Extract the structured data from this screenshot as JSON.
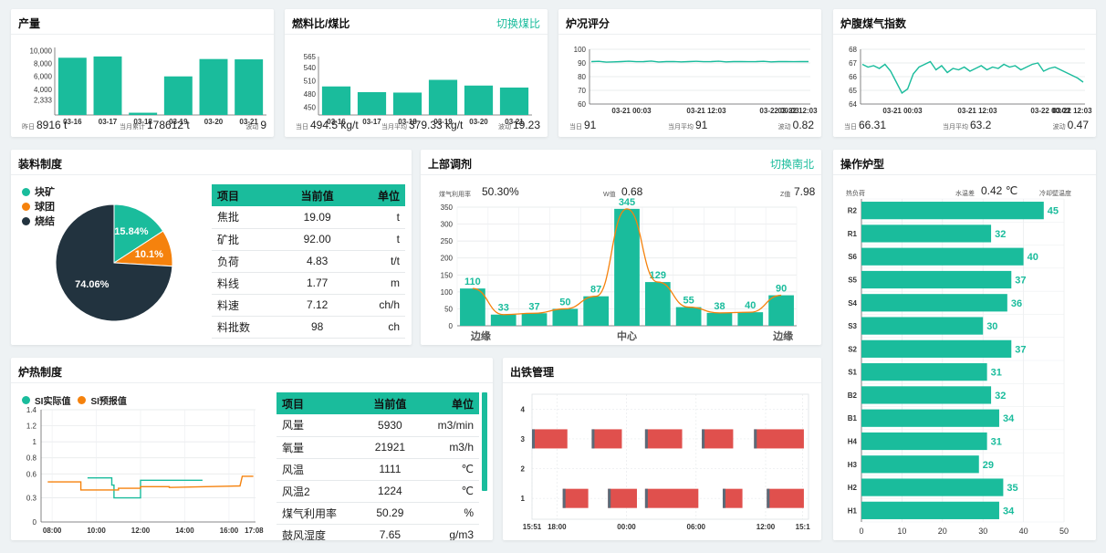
{
  "colors": {
    "accent": "#1abc9c",
    "orange": "#f5820d",
    "dark": "#22333f",
    "red": "#e0504d",
    "grey": "#5a6a78"
  },
  "production": {
    "title": "产量",
    "stats": [
      {
        "label": "昨日",
        "value": "8916 t"
      },
      {
        "label": "当月累计",
        "value": "178612 t"
      },
      {
        "label": "波动",
        "value": "9"
      }
    ]
  },
  "fuel": {
    "title": "燃料比/煤比",
    "action": "切换煤比",
    "stats": [
      {
        "label": "当日",
        "value": "494.5 kg/t"
      },
      {
        "label": "当月平均",
        "value": "379.33 kg/t"
      },
      {
        "label": "波动",
        "value": "19.23"
      }
    ]
  },
  "furnace_score": {
    "title": "炉况评分",
    "stats": [
      {
        "label": "当日",
        "value": "91"
      },
      {
        "label": "当月平均",
        "value": "91"
      },
      {
        "label": "波动",
        "value": "0.82"
      }
    ]
  },
  "bosh_gas": {
    "title": "炉腹煤气指数",
    "stats": [
      {
        "label": "当日",
        "value": "66.31"
      },
      {
        "label": "当月平均",
        "value": "63.2"
      },
      {
        "label": "波动",
        "value": "0.47"
      }
    ]
  },
  "charging": {
    "title": "装料制度",
    "legend": [
      "块矿",
      "球团",
      "烧结"
    ],
    "table": {
      "headers": [
        "项目",
        "当前值",
        "单位"
      ],
      "rows": [
        [
          "焦批",
          "19.09",
          "t"
        ],
        [
          "矿批",
          "92.00",
          "t"
        ],
        [
          "负荷",
          "4.83",
          "t/t"
        ],
        [
          "料线",
          "1.77",
          "m"
        ],
        [
          "料速",
          "7.12",
          "ch/h"
        ],
        [
          "料批数",
          "98",
          "ch"
        ]
      ]
    }
  },
  "upper": {
    "title": "上部调剂",
    "action": "切换南北",
    "gas_label": "煤气利用率",
    "gas_value": "50.30%",
    "w_label": "W值",
    "w_value": "0.68",
    "z_label": "Z值",
    "z_value": "7.98"
  },
  "operation": {
    "title": "操作炉型",
    "left_label": "热负荷",
    "water_label": "水温差",
    "water_value": "0.42 ℃",
    "right_label": "冷却壁温度"
  },
  "thermal": {
    "title": "炉热制度",
    "legend": [
      "SI实际值",
      "SI预报值"
    ],
    "table": {
      "headers": [
        "项目",
        "当前值",
        "单位"
      ],
      "rows": [
        [
          "风量",
          "5930",
          "m3/min"
        ],
        [
          "氧量",
          "21921",
          "m3/h"
        ],
        [
          "风温",
          "1111",
          "℃"
        ],
        [
          "风温2",
          "1224",
          "℃"
        ],
        [
          "煤气利用率",
          "50.29",
          "%"
        ],
        [
          "鼓风湿度",
          "7.65",
          "g/m3"
        ]
      ]
    }
  },
  "tapping": {
    "title": "出铁管理"
  },
  "chart_data": [
    {
      "id": "production",
      "type": "bar",
      "categories": [
        "03-16",
        "03-17",
        "03-18",
        "03-19",
        "03-20",
        "03-21"
      ],
      "values": [
        8900,
        9100,
        350,
        6000,
        8700,
        8650
      ],
      "yticks": [
        2333,
        4000,
        6000,
        8000,
        10000
      ],
      "ytick_labels": [
        "2,333",
        "4,000",
        "6,000",
        "8,000",
        "10,000"
      ],
      "ylim": [
        0,
        10500
      ]
    },
    {
      "id": "fuel",
      "type": "bar",
      "categories": [
        "03-16",
        "03-17",
        "03-18",
        "03-19",
        "03-20",
        "03-21"
      ],
      "values": [
        497,
        484,
        483,
        512,
        499,
        494.5
      ],
      "yticks": [
        450,
        480,
        510,
        540,
        565
      ],
      "ylim": [
        432,
        565
      ]
    },
    {
      "id": "furnace_score",
      "type": "line",
      "x_labels": [
        "03-21 00:03",
        "03-21 12:03",
        "03-22 00:03",
        "03-22 12:03"
      ],
      "yticks": [
        60,
        70,
        80,
        90,
        100
      ],
      "ylim": [
        60,
        100
      ],
      "values": [
        91,
        91.2,
        90.6,
        90.8,
        91,
        91.3,
        90.9,
        91,
        91.4,
        90.7,
        91,
        91.1,
        90.8,
        91,
        91.2,
        90.9,
        91,
        91.3,
        90.8,
        91,
        91.1,
        90.9,
        91,
        91.2,
        90.8,
        91,
        91.1,
        90.9,
        91,
        91
      ]
    },
    {
      "id": "bosh_gas",
      "type": "line",
      "x_labels": [
        "03-21 00:03",
        "03-21 12:03",
        "03-22 00:03",
        "03-22 12:03"
      ],
      "yticks": [
        64,
        65,
        66,
        67,
        68
      ],
      "ylim": [
        64,
        68
      ],
      "values": [
        66.9,
        66.7,
        66.8,
        66.6,
        66.9,
        66.4,
        65.6,
        64.8,
        65.1,
        66.2,
        66.7,
        66.9,
        67.1,
        66.5,
        66.8,
        66.3,
        66.6,
        66.5,
        66.7,
        66.4,
        66.6,
        66.8,
        66.5,
        66.7,
        66.6,
        66.9,
        66.7,
        66.8,
        66.5,
        66.7,
        66.9,
        67.0,
        66.4,
        66.6,
        66.7,
        66.5,
        66.3,
        66.1,
        65.9,
        65.6
      ]
    },
    {
      "id": "charging",
      "type": "pie",
      "labels": [
        "块矿",
        "球团",
        "烧结"
      ],
      "values": [
        15.84,
        10.1,
        74.06
      ],
      "value_labels": [
        "15.84%",
        "10.1%",
        "74.06%"
      ]
    },
    {
      "id": "upper",
      "type": "bar",
      "values": [
        110,
        33,
        37,
        50,
        87,
        345,
        129,
        55,
        38,
        40,
        90
      ],
      "x_labels": [
        "边缘",
        "中心",
        "边缘"
      ],
      "yticks": [
        0,
        50,
        100,
        150,
        200,
        250,
        300,
        350
      ],
      "ylim": [
        0,
        350
      ]
    },
    {
      "id": "operation",
      "type": "bar",
      "orientation": "horizontal",
      "categories": [
        "R2",
        "R1",
        "S6",
        "S5",
        "S4",
        "S3",
        "S2",
        "S1",
        "B2",
        "B1",
        "H4",
        "H3",
        "H2",
        "H1"
      ],
      "values": [
        45,
        32,
        40,
        37,
        36,
        30,
        37,
        31,
        32,
        34,
        31,
        29,
        35,
        34
      ],
      "xticks": [
        0,
        10,
        20,
        30,
        40,
        50
      ],
      "xlim": [
        0,
        50
      ]
    },
    {
      "id": "thermal",
      "type": "line",
      "x_labels": [
        "08:00",
        "10:00",
        "12:00",
        "14:00",
        "16:00",
        "17:08"
      ],
      "x_hours": [
        8,
        10,
        12,
        14,
        16,
        17.133
      ],
      "yticks": [
        0,
        0.3,
        0.6,
        0.8,
        1,
        1.2,
        1.4
      ],
      "ylim": [
        0,
        1.4
      ],
      "series": [
        {
          "name": "SI实际值",
          "points": [
            [
              9.6,
              0.55
            ],
            [
              10.7,
              0.55
            ],
            [
              10.7,
              0.46
            ],
            [
              10.8,
              0.46
            ],
            [
              10.8,
              0.3
            ],
            [
              12.0,
              0.3
            ],
            [
              12.0,
              0.52
            ],
            [
              14.8,
              0.52
            ]
          ]
        },
        {
          "name": "SI预报值",
          "points": [
            [
              7.8,
              0.5
            ],
            [
              9.3,
              0.5
            ],
            [
              9.3,
              0.4
            ],
            [
              11.0,
              0.4
            ],
            [
              11.0,
              0.42
            ],
            [
              12.0,
              0.42
            ],
            [
              12.0,
              0.44
            ],
            [
              13.3,
              0.44
            ],
            [
              13.3,
              0.43
            ],
            [
              16.5,
              0.45
            ],
            [
              16.6,
              0.57
            ],
            [
              17.1,
              0.57
            ]
          ]
        }
      ]
    },
    {
      "id": "tapping",
      "type": "gantt",
      "yticks": [
        1,
        2,
        3,
        4
      ],
      "x_labels": [
        "15:51",
        "18:00",
        "00:00",
        "06:00",
        "12:00",
        "15:1"
      ],
      "x_hours": [
        15.85,
        18,
        24,
        30,
        36,
        39.2
      ],
      "xlim": [
        15.85,
        39.7
      ],
      "bars": [
        {
          "row": 3,
          "start": 15.85,
          "end": 18.9
        },
        {
          "row": 3,
          "start": 21.0,
          "end": 23.6
        },
        {
          "row": 3,
          "start": 25.6,
          "end": 28.8
        },
        {
          "row": 3,
          "start": 30.5,
          "end": 33.2
        },
        {
          "row": 3,
          "start": 35.0,
          "end": 39.3
        },
        {
          "row": 1,
          "start": 18.5,
          "end": 20.7
        },
        {
          "row": 1,
          "start": 22.4,
          "end": 24.9
        },
        {
          "row": 1,
          "start": 25.6,
          "end": 30.2
        },
        {
          "row": 1,
          "start": 32.3,
          "end": 34.0
        },
        {
          "row": 1,
          "start": 36.1,
          "end": 39.3
        }
      ]
    }
  ]
}
